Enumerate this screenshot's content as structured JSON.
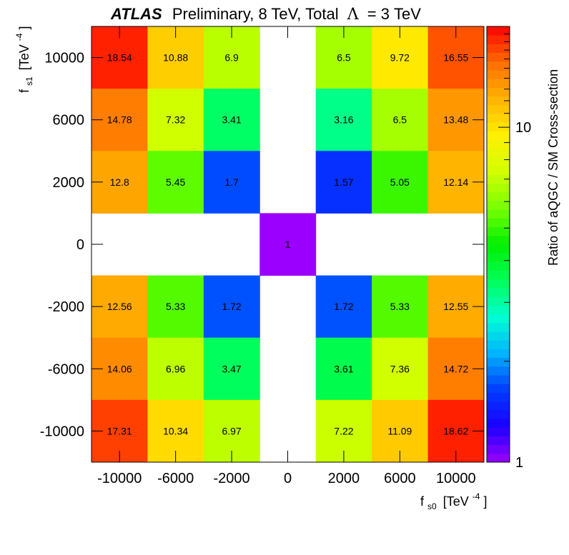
{
  "title": {
    "experiment": "ATLAS",
    "rest": "Preliminary, 8 TeV, Total",
    "lambda_symbol": "Λ",
    "lambda_value": "= 3 TeV"
  },
  "axes": {
    "x": {
      "symbol": "f",
      "subscript": "s0",
      "unit_prefix": "[TeV",
      "unit_exp": "-4",
      "unit_suffix": "]"
    },
    "y": {
      "symbol": "f",
      "subscript": "s1",
      "unit_prefix": "[TeV",
      "unit_exp": "-4",
      "unit_suffix": "]"
    },
    "z": {
      "label": "Ratio of aQGC / SM Cross-section",
      "scale": "log",
      "range": [
        1,
        20
      ],
      "tick_labels": [
        "1",
        "10"
      ]
    }
  },
  "chart_data": {
    "type": "heatmap",
    "x_categories": [
      "-10000",
      "-6000",
      "-2000",
      "0",
      "2000",
      "6000",
      "10000"
    ],
    "y_categories": [
      "10000",
      "6000",
      "2000",
      "0",
      "-2000",
      "-6000",
      "-10000"
    ],
    "values": [
      [
        18.54,
        10.88,
        6.9,
        null,
        6.5,
        9.72,
        16.55
      ],
      [
        14.78,
        7.32,
        3.41,
        null,
        3.16,
        6.5,
        13.48
      ],
      [
        12.8,
        5.45,
        1.7,
        null,
        1.57,
        5.05,
        12.14
      ],
      [
        null,
        null,
        null,
        1,
        null,
        null,
        null
      ],
      [
        12.56,
        5.33,
        1.72,
        null,
        1.72,
        5.33,
        12.55
      ],
      [
        14.06,
        6.96,
        3.47,
        null,
        3.61,
        7.36,
        14.72
      ],
      [
        17.31,
        10.34,
        6.97,
        null,
        7.22,
        11.09,
        18.62
      ]
    ],
    "z_scale": "log",
    "z_range": [
      1,
      20
    ],
    "legend": "right colorbar",
    "colormap": "rainbow"
  },
  "colors": {
    "palette": [
      "#9b00ff",
      "#1a00ff",
      "#003cff",
      "#00b4ff",
      "#00ffd2",
      "#00ff5a",
      "#00f000",
      "#78ff00",
      "#d2ff00",
      "#fff000",
      "#ffb400",
      "#ff6e00",
      "#ff0000"
    ]
  }
}
